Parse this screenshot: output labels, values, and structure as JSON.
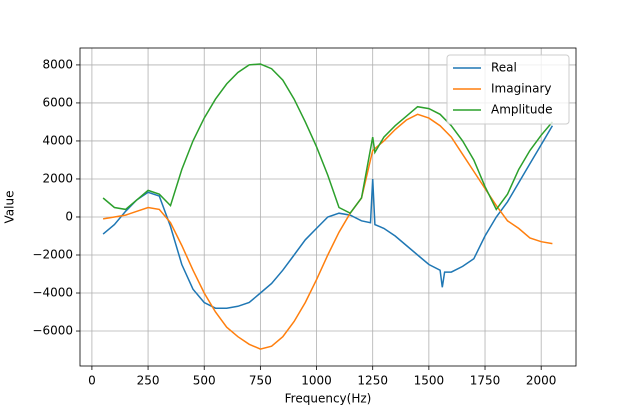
{
  "chart_data": {
    "type": "line",
    "xlabel": "Frequency(Hz)",
    "ylabel": "Value",
    "xlim": [
      -53,
      2155
    ],
    "ylim": [
      -7840,
      8890
    ],
    "xticks": [
      0,
      250,
      500,
      750,
      1000,
      1250,
      1500,
      1750,
      2000
    ],
    "yticks": [
      {
        "value": -6000,
        "label": "−6000"
      },
      {
        "value": -4000,
        "label": "−4000"
      },
      {
        "value": -2000,
        "label": "−2000"
      },
      0,
      2000,
      4000,
      6000,
      8000
    ],
    "grid": true,
    "legend": "upper-right",
    "series": [
      {
        "name": "Real",
        "color": "#1f77b4",
        "x": [
          50,
          100,
          150,
          200,
          250,
          300,
          350,
          400,
          450,
          500,
          550,
          600,
          650,
          700,
          750,
          800,
          850,
          900,
          950,
          1000,
          1050,
          1100,
          1150,
          1200,
          1240,
          1250,
          1260,
          1300,
          1350,
          1400,
          1450,
          1500,
          1550,
          1560,
          1570,
          1600,
          1650,
          1700,
          1750,
          1800,
          1850,
          1900,
          1950,
          2000,
          2050
        ],
        "values": [
          -900,
          -400,
          300,
          900,
          1300,
          1100,
          -500,
          -2500,
          -3800,
          -4500,
          -4800,
          -4800,
          -4700,
          -4500,
          -4000,
          -3500,
          -2800,
          -2000,
          -1200,
          -600,
          0,
          200,
          100,
          -200,
          -300,
          2000,
          -400,
          -600,
          -1000,
          -1500,
          -2000,
          -2500,
          -2800,
          -3700,
          -2900,
          -2900,
          -2600,
          -2200,
          -1000,
          0,
          800,
          1800,
          2800,
          3800,
          4800
        ]
      },
      {
        "name": "Imaginary",
        "color": "#ff7f0e",
        "x": [
          50,
          100,
          150,
          200,
          250,
          300,
          350,
          400,
          450,
          500,
          550,
          600,
          650,
          700,
          750,
          800,
          850,
          900,
          950,
          1000,
          1050,
          1100,
          1150,
          1200,
          1250,
          1300,
          1350,
          1400,
          1450,
          1500,
          1550,
          1600,
          1650,
          1700,
          1750,
          1800,
          1850,
          1900,
          1950,
          2000,
          2050
        ],
        "values": [
          -100,
          0,
          100,
          300,
          500,
          400,
          -300,
          -1500,
          -2800,
          -4000,
          -5000,
          -5800,
          -6300,
          -6700,
          -6950,
          -6800,
          -6300,
          -5500,
          -4500,
          -3300,
          -2000,
          -800,
          200,
          1000,
          3500,
          4000,
          4600,
          5100,
          5400,
          5200,
          4800,
          4200,
          3300,
          2400,
          1500,
          600,
          -200,
          -600,
          -1100,
          -1300,
          -1400
        ]
      },
      {
        "name": "Amplitude",
        "color": "#2ca02c",
        "x": [
          50,
          100,
          150,
          200,
          250,
          300,
          350,
          400,
          450,
          500,
          550,
          600,
          650,
          700,
          750,
          800,
          850,
          900,
          950,
          1000,
          1050,
          1100,
          1150,
          1200,
          1250,
          1260,
          1300,
          1350,
          1400,
          1450,
          1500,
          1550,
          1600,
          1650,
          1700,
          1750,
          1800,
          1850,
          1900,
          1950,
          2000,
          2050
        ],
        "values": [
          1000,
          500,
          400,
          900,
          1400,
          1200,
          600,
          2500,
          4000,
          5200,
          6200,
          7000,
          7600,
          8000,
          8050,
          7800,
          7200,
          6200,
          5000,
          3700,
          2200,
          500,
          200,
          1000,
          4200,
          3400,
          4200,
          4800,
          5300,
          5800,
          5700,
          5400,
          4800,
          4000,
          3000,
          1600,
          400,
          1200,
          2500,
          3500,
          4300,
          5000
        ]
      }
    ]
  }
}
